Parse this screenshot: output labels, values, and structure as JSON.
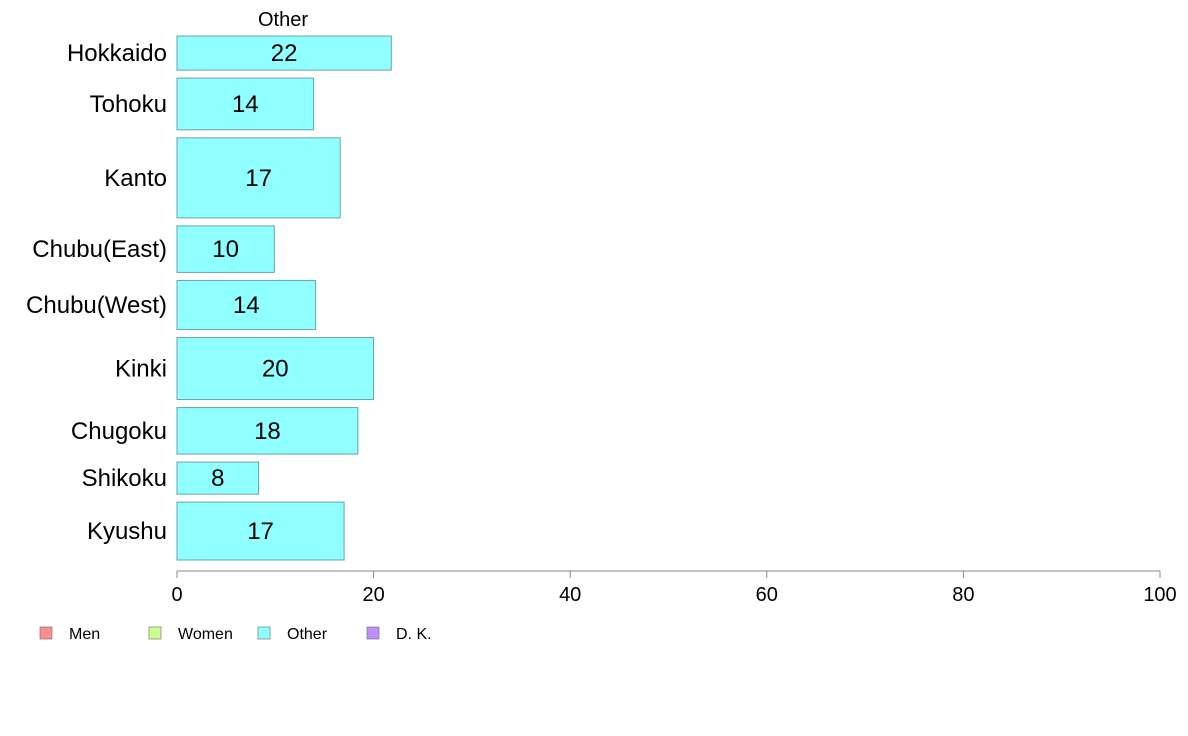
{
  "chart_data": {
    "type": "bar",
    "orientation": "horizontal",
    "panel_title": "Other",
    "categories": [
      "Hokkaido",
      "Tohoku",
      "Kanto",
      "Chubu(East)",
      "Chubu(West)",
      "Kinki",
      "Chugoku",
      "Shikoku",
      "Kyushu"
    ],
    "bar_widths": [
      0.66,
      1.0,
      1.55,
      0.9,
      0.95,
      1.2,
      0.9,
      0.62,
      1.12
    ],
    "series": [
      {
        "name": "Other",
        "values": [
          22,
          14,
          17,
          10,
          14,
          20,
          18,
          8,
          17
        ],
        "labels": [
          "22",
          "14",
          "17",
          "10",
          "14",
          "20",
          "18",
          "8",
          "17"
        ]
      }
    ],
    "value_exact": [
      21.8,
      13.9,
      16.6,
      9.9,
      14.1,
      20.0,
      18.4,
      8.3,
      17.0
    ],
    "xlim": [
      0,
      100
    ],
    "xticks": [
      "0",
      "20",
      "40",
      "60",
      "80",
      "100"
    ],
    "grid": false,
    "legend": {
      "placement": "bottom-left",
      "items": [
        {
          "label": "Men",
          "color": "#ff8f8f"
        },
        {
          "label": "Women",
          "color": "#ccff8f"
        },
        {
          "label": "Other",
          "color": "#8fffff"
        },
        {
          "label": "D. K.",
          "color": "#bf8fff"
        }
      ]
    },
    "colors": {
      "bar_fill": "#8fffff",
      "bar_stroke": "#6aa3a3",
      "axis": "#888888"
    }
  }
}
